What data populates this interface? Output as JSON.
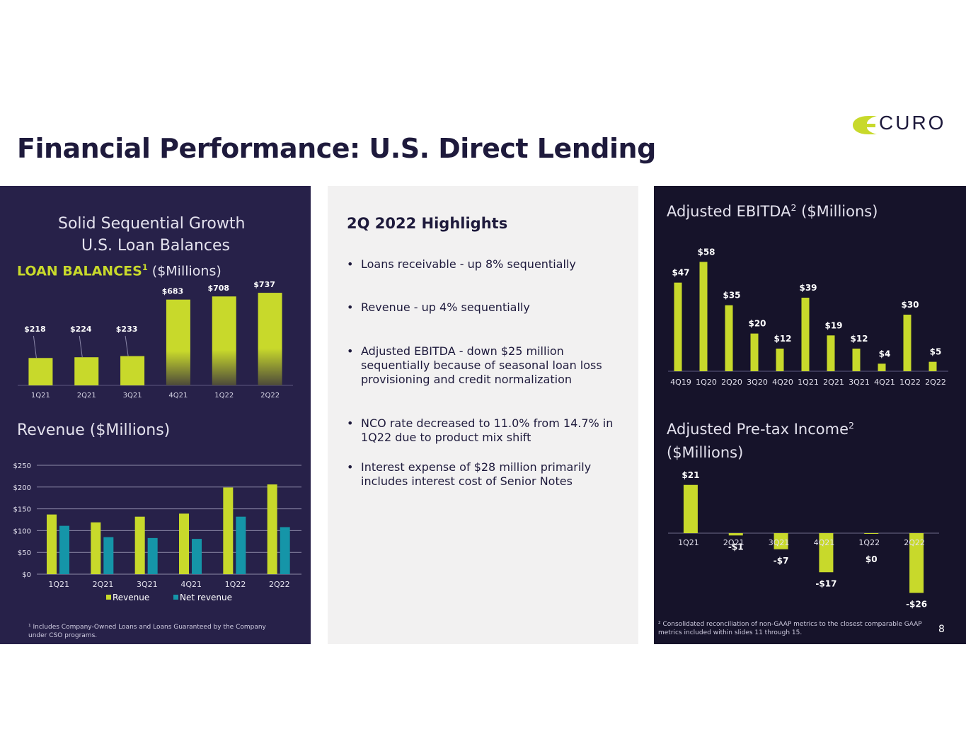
{
  "slide": {
    "title": "Financial Performance: U.S. Direct Lending",
    "logo_text": "CURO",
    "page_number": "8"
  },
  "left": {
    "loan_title_line1": "Solid Sequential Growth",
    "loan_title_line2": "U.S. Loan Balances",
    "loan_label_bold": "LOAN BALANCES",
    "loan_label_sup": "1",
    "loan_label_rest": " ($Millions)",
    "revenue_title": "Revenue ($Millions)",
    "footnote": "¹ Includes Company-Owned Loans and Loans Guaranteed by the Company under CSO programs."
  },
  "middle": {
    "highlights_title": "2Q 2022 Highlights",
    "bullets": [
      "Loans receivable - up 8% sequentially",
      "Revenue - up 4% sequentially",
      "Adjusted EBITDA - down $25 million sequentially because of seasonal loan loss provisioning and credit normalization",
      "NCO rate decreased to 11.0% from 14.7% in 1Q22 due to product mix shift",
      "Interest expense of $28 million primarily includes interest cost of Senior Notes"
    ]
  },
  "right": {
    "ebitda_title_main": "Adjusted EBITDA",
    "ebitda_title_sup": "2",
    "ebitda_title_rest": " ($Millions)",
    "pretax_title_main": "Adjusted Pre-tax Income",
    "pretax_title_sup": "2",
    "pretax_title_line2": "($Millions)",
    "footnote": "² Consolidated reconciliation of non-GAAP metrics to the closest comparable GAAP metrics included within slides 11 through 15."
  },
  "colors": {
    "navy": "#272149",
    "dark": "#16132a",
    "lime": "#c8d92b",
    "teal": "#1595a8",
    "title": "#1e1a3c"
  },
  "chart_data": [
    {
      "id": "loan-balances",
      "type": "bar",
      "categories": [
        "1Q21",
        "2Q21",
        "3Q21",
        "4Q21",
        "1Q22",
        "2Q22"
      ],
      "values": [
        218,
        224,
        233,
        683,
        708,
        737
      ],
      "data_labels": [
        "$218",
        "$224",
        "$233",
        "$683",
        "$708",
        "$737"
      ],
      "ylim": [
        0,
        760
      ]
    },
    {
      "id": "revenue",
      "type": "bar",
      "categories": [
        "1Q21",
        "2Q21",
        "3Q21",
        "4Q21",
        "1Q22",
        "2Q22"
      ],
      "series": [
        {
          "name": "Revenue",
          "values": [
            137,
            119,
            132,
            139,
            199,
            206
          ]
        },
        {
          "name": "Net revenue",
          "values": [
            111,
            85,
            83,
            81,
            132,
            108
          ]
        }
      ],
      "yticks": [
        0,
        50,
        100,
        150,
        200,
        250
      ],
      "ytick_labels": [
        "$0",
        "$50",
        "$100",
        "$150",
        "$200",
        "$250"
      ],
      "ylim": [
        0,
        250
      ],
      "grid": true,
      "legend": "bottom"
    },
    {
      "id": "adjusted-ebitda",
      "type": "bar",
      "categories": [
        "4Q19",
        "1Q20",
        "2Q20",
        "3Q20",
        "4Q20",
        "1Q21",
        "2Q21",
        "3Q21",
        "4Q21",
        "1Q22",
        "2Q22"
      ],
      "values": [
        47,
        58,
        35,
        20,
        12,
        39,
        19,
        12,
        4,
        30,
        5
      ],
      "data_labels": [
        "$47",
        "$58",
        "$35",
        "$20",
        "$12",
        "$39",
        "$19",
        "$12",
        "$4",
        "$30",
        "$5"
      ],
      "ylim": [
        0,
        60
      ]
    },
    {
      "id": "adjusted-pretax-income",
      "type": "bar",
      "categories": [
        "1Q21",
        "2Q21",
        "3Q21",
        "4Q21",
        "1Q22",
        "2Q22"
      ],
      "values": [
        21,
        -1,
        -7,
        -17,
        0,
        -26
      ],
      "data_labels": [
        "$21",
        "-$1",
        "-$7",
        "-$17",
        "$0",
        "-$26"
      ],
      "ylim": [
        -26,
        21
      ]
    }
  ]
}
